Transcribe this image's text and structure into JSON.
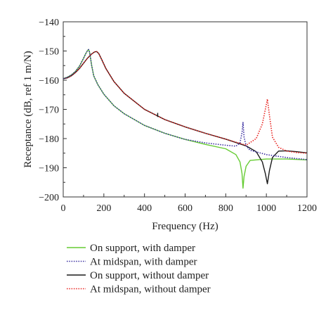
{
  "chart_data": {
    "type": "line",
    "title": "",
    "xlabel": "Frequency (Hz)",
    "ylabel": "Receptance (dB, ref 1 m/N)",
    "xlim": [
      0,
      1200
    ],
    "ylim": [
      -200,
      -140
    ],
    "xticks": [
      0,
      200,
      400,
      600,
      800,
      1000,
      1200
    ],
    "yticks": [
      -140,
      -150,
      -160,
      -170,
      -180,
      -190,
      -200
    ],
    "grid": false,
    "legend_position": "bottom-left, below plot",
    "series": [
      {
        "name": "On support, with damper",
        "color": "#66cc33",
        "style": "solid",
        "x": [
          0,
          20,
          40,
          60,
          80,
          100,
          110,
          120,
          125,
          130,
          140,
          150,
          170,
          200,
          250,
          300,
          400,
          500,
          600,
          700,
          800,
          850,
          870,
          880,
          885,
          890,
          900,
          920,
          1000,
          1100,
          1200
        ],
        "y": [
          -159.5,
          -159,
          -158.2,
          -157,
          -155.2,
          -152.5,
          -151,
          -149.8,
          -149.5,
          -150.5,
          -155,
          -158.5,
          -161.5,
          -164.8,
          -168.8,
          -171.5,
          -175.5,
          -178.2,
          -180.3,
          -182,
          -183.5,
          -185.5,
          -188,
          -192,
          -197,
          -193,
          -189.5,
          -187.5,
          -187,
          -187,
          -187.3
        ]
      },
      {
        "name": "At midspan, with damper",
        "color": "#3a2fa0",
        "style": "dotted",
        "x": [
          0,
          20,
          40,
          60,
          80,
          100,
          110,
          120,
          125,
          130,
          140,
          150,
          170,
          200,
          250,
          300,
          400,
          500,
          600,
          700,
          800,
          850,
          870,
          880,
          885,
          890,
          900,
          920,
          1000,
          1100,
          1200
        ],
        "y": [
          -159.5,
          -159,
          -158.2,
          -157,
          -155.2,
          -152.5,
          -151,
          -149.8,
          -149.5,
          -150.5,
          -155,
          -158.5,
          -161.5,
          -164.8,
          -168.8,
          -171.5,
          -175.5,
          -178.2,
          -180.3,
          -181.5,
          -182.3,
          -182.6,
          -181.5,
          -178,
          -174.5,
          -179.5,
          -182.5,
          -184,
          -185.5,
          -186.5,
          -187.2
        ]
      },
      {
        "name": "On support, without damper",
        "color": "#1a1a1a",
        "style": "solid",
        "x": [
          0,
          20,
          40,
          60,
          80,
          100,
          120,
          140,
          155,
          165,
          175,
          190,
          210,
          250,
          300,
          400,
          500,
          600,
          700,
          800,
          900,
          950,
          980,
          995,
          1005,
          1015,
          1030,
          1060,
          1100,
          1150,
          1200
        ],
        "y": [
          -159.5,
          -159.2,
          -158.5,
          -157.4,
          -156,
          -154.2,
          -152.4,
          -151,
          -150.3,
          -150.2,
          -150.9,
          -153,
          -156,
          -160.5,
          -164.5,
          -170,
          -173.5,
          -176,
          -178.2,
          -180.2,
          -182.5,
          -184.5,
          -188,
          -192,
          -195.5,
          -191,
          -186.5,
          -184.3,
          -184.2,
          -184.5,
          -184.9
        ]
      },
      {
        "name": "At midspan, without damper",
        "color": "#e8231f",
        "style": "dotted",
        "x": [
          0,
          20,
          40,
          60,
          80,
          100,
          120,
          140,
          155,
          165,
          175,
          190,
          210,
          250,
          300,
          400,
          500,
          600,
          700,
          800,
          900,
          950,
          980,
          995,
          1005,
          1015,
          1030,
          1060,
          1100,
          1150,
          1200
        ],
        "y": [
          -159.5,
          -159.2,
          -158.5,
          -157.4,
          -156,
          -154.2,
          -152.4,
          -151,
          -150.3,
          -150.2,
          -150.9,
          -153,
          -156,
          -160.5,
          -164.5,
          -170,
          -173.5,
          -176,
          -178.2,
          -180.2,
          -182.3,
          -180,
          -175,
          -170,
          -166.5,
          -172,
          -179.5,
          -183,
          -184.3,
          -184.8,
          -185
        ]
      }
    ]
  }
}
